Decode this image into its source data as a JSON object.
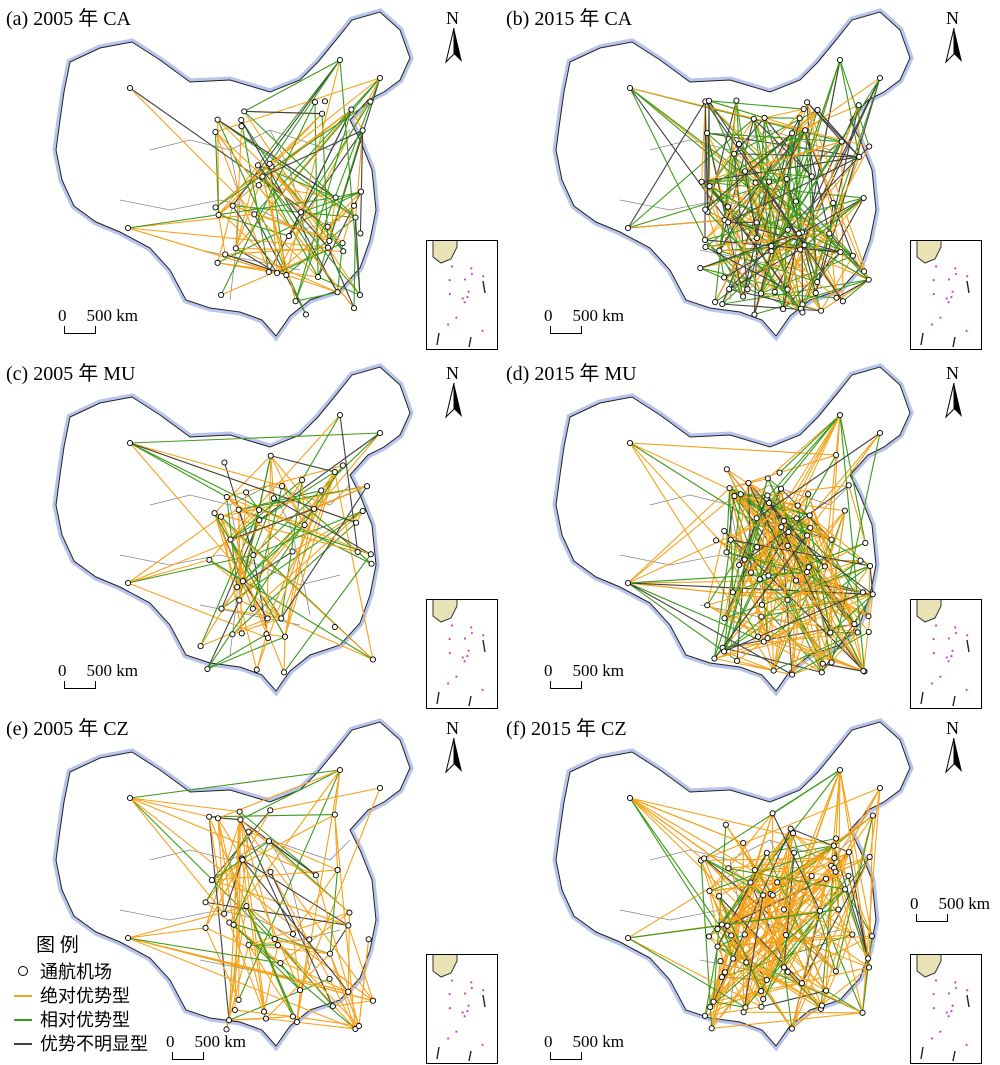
{
  "panels": [
    {
      "id": "a",
      "title": "(a) 2005 年 CA",
      "scale_zero": "0",
      "scale_label": "500 km",
      "north": "N"
    },
    {
      "id": "b",
      "title": "(b) 2015 年 CA",
      "scale_zero": "0",
      "scale_label": "500 km",
      "north": "N"
    },
    {
      "id": "c",
      "title": "(c) 2005 年 MU",
      "scale_zero": "0",
      "scale_label": "500 km",
      "north": "N"
    },
    {
      "id": "d",
      "title": "(d) 2015 年 MU",
      "scale_zero": "0",
      "scale_label": "500 km",
      "north": "N"
    },
    {
      "id": "e",
      "title": "(e) 2005 年 CZ",
      "scale_zero": "0",
      "scale_label": "500 km",
      "north": "N"
    },
    {
      "id": "f",
      "title": "(f) 2015 年 CZ",
      "scale_zero": "0",
      "scale_label": "500 km",
      "north": "N"
    }
  ],
  "legend": {
    "title": "图 例",
    "items": [
      {
        "label": "通航机场",
        "symbol": "circle"
      },
      {
        "label": "绝对优势型",
        "symbol": "line",
        "color": "#f5a21b"
      },
      {
        "label": "相对优势型",
        "symbol": "line",
        "color": "#3c9a1a"
      },
      {
        "label": "优势不明显型",
        "symbol": "line",
        "color": "#404040"
      }
    ]
  },
  "colors": {
    "absolute": "#f5a21b",
    "relative": "#3c9a1a",
    "unclear": "#404040",
    "boundary": "#8a8a8a",
    "coast_glow": "#b8c4ee",
    "islands": "#d43cd4"
  }
}
